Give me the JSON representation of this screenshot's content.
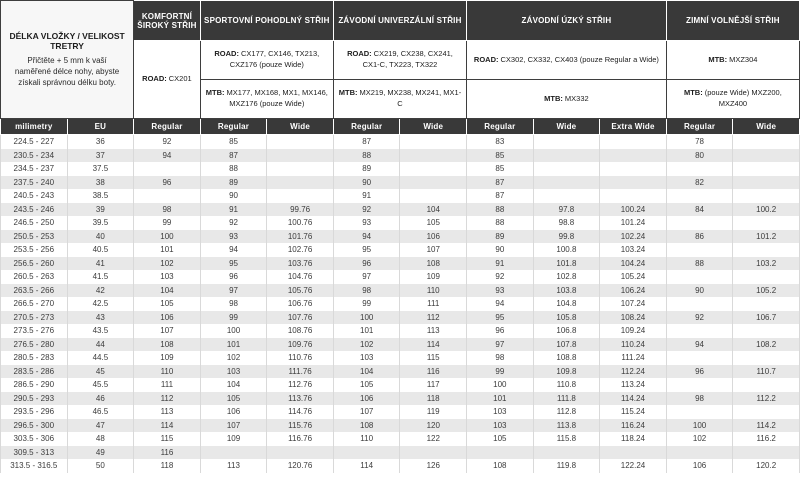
{
  "info": {
    "title": "DÉLKA VLOŽKY / VELIKOST TRETRY",
    "description": "Přičtěte + 5 mm k vaší naměřené délce nohy, abyste získali správnou délku boty."
  },
  "categories": [
    {
      "label": "KOMFORTNÍ ŠIROKÝ STŘIH",
      "cells": [
        {
          "prefix": "ROAD:",
          "models": "CX201"
        }
      ]
    },
    {
      "label": "SPORTOVNÍ POHODLNÝ STŘIH",
      "cells": [
        {
          "prefix": "ROAD:",
          "models": "CX177, CX146, TX213, CXZ176 (pouze Wide)"
        },
        {
          "prefix": "MTB:",
          "models": "MX177, MX168, MX1, MX146, MXZ176 (pouze Wide)"
        }
      ]
    },
    {
      "label": "ZÁVODNÍ UNIVERZÁLNÍ STŘIH",
      "cells": [
        {
          "prefix": "ROAD:",
          "models": "CX219, CX238, CX241, CX1-C, TX223, TX322"
        },
        {
          "prefix": "MTB:",
          "models": "MX219, MX238, MX241, MX1-C"
        }
      ]
    },
    {
      "label": "ZÁVODNÍ ÚZKÝ STŘIH",
      "cells": [
        {
          "prefix": "ROAD:",
          "models": "CX302, CX332, CX403 (pouze Regular a Wide)"
        },
        {
          "prefix": "MTB:",
          "models": "MX332"
        }
      ]
    },
    {
      "label": "ZIMNÍ VOLNĚJŠÍ STŘIH",
      "cells": [
        {
          "prefix": "MTB:",
          "models": "MXZ304"
        },
        {
          "prefix": "MTB:",
          "models": "(pouze Wide) MXZ200, MXZ400"
        }
      ]
    }
  ],
  "table": {
    "columns": [
      "milimetry",
      "EU",
      "Regular",
      "Regular",
      "Wide",
      "Regular",
      "Wide",
      "Regular",
      "Wide",
      "Extra Wide",
      "Regular",
      "Wide"
    ],
    "rows": [
      [
        "224.5 - 227",
        "36",
        "92",
        "85",
        "",
        "87",
        "",
        "83",
        "",
        "",
        "78",
        ""
      ],
      [
        "230.5 - 234",
        "37",
        "94",
        "87",
        "",
        "88",
        "",
        "85",
        "",
        "",
        "80",
        ""
      ],
      [
        "234.5 - 237",
        "37.5",
        "",
        "88",
        "",
        "89",
        "",
        "85",
        "",
        "",
        "",
        ""
      ],
      [
        "237.5 - 240",
        "38",
        "96",
        "89",
        "",
        "90",
        "",
        "87",
        "",
        "",
        "82",
        ""
      ],
      [
        "240.5 - 243",
        "38.5",
        "",
        "90",
        "",
        "91",
        "",
        "87",
        "",
        "",
        "",
        ""
      ],
      [
        "243.5 - 246",
        "39",
        "98",
        "91",
        "99.76",
        "92",
        "104",
        "88",
        "97.8",
        "100.24",
        "84",
        "100.2"
      ],
      [
        "246.5 - 250",
        "39.5",
        "99",
        "92",
        "100.76",
        "93",
        "105",
        "88",
        "98.8",
        "101.24",
        "",
        ""
      ],
      [
        "250.5 - 253",
        "40",
        "100",
        "93",
        "101.76",
        "94",
        "106",
        "89",
        "99.8",
        "102.24",
        "86",
        "101.2"
      ],
      [
        "253.5 - 256",
        "40.5",
        "101",
        "94",
        "102.76",
        "95",
        "107",
        "90",
        "100.8",
        "103.24",
        "",
        ""
      ],
      [
        "256.5 - 260",
        "41",
        "102",
        "95",
        "103.76",
        "96",
        "108",
        "91",
        "101.8",
        "104.24",
        "88",
        "103.2"
      ],
      [
        "260.5 - 263",
        "41.5",
        "103",
        "96",
        "104.76",
        "97",
        "109",
        "92",
        "102.8",
        "105.24",
        "",
        ""
      ],
      [
        "263.5 - 266",
        "42",
        "104",
        "97",
        "105.76",
        "98",
        "110",
        "93",
        "103.8",
        "106.24",
        "90",
        "105.2"
      ],
      [
        "266.5 - 270",
        "42.5",
        "105",
        "98",
        "106.76",
        "99",
        "111",
        "94",
        "104.8",
        "107.24",
        "",
        ""
      ],
      [
        "270.5 - 273",
        "43",
        "106",
        "99",
        "107.76",
        "100",
        "112",
        "95",
        "105.8",
        "108.24",
        "92",
        "106.7"
      ],
      [
        "273.5 - 276",
        "43.5",
        "107",
        "100",
        "108.76",
        "101",
        "113",
        "96",
        "106.8",
        "109.24",
        "",
        ""
      ],
      [
        "276.5 - 280",
        "44",
        "108",
        "101",
        "109.76",
        "102",
        "114",
        "97",
        "107.8",
        "110.24",
        "94",
        "108.2"
      ],
      [
        "280.5 - 283",
        "44.5",
        "109",
        "102",
        "110.76",
        "103",
        "115",
        "98",
        "108.8",
        "111.24",
        "",
        ""
      ],
      [
        "283.5 - 286",
        "45",
        "110",
        "103",
        "111.76",
        "104",
        "116",
        "99",
        "109.8",
        "112.24",
        "96",
        "110.7"
      ],
      [
        "286.5 - 290",
        "45.5",
        "111",
        "104",
        "112.76",
        "105",
        "117",
        "100",
        "110.8",
        "113.24",
        "",
        ""
      ],
      [
        "290.5 - 293",
        "46",
        "112",
        "105",
        "113.76",
        "106",
        "118",
        "101",
        "111.8",
        "114.24",
        "98",
        "112.2"
      ],
      [
        "293.5 - 296",
        "46.5",
        "113",
        "106",
        "114.76",
        "107",
        "119",
        "103",
        "112.8",
        "115.24",
        "",
        ""
      ],
      [
        "296.5 - 300",
        "47",
        "114",
        "107",
        "115.76",
        "108",
        "120",
        "103",
        "113.8",
        "116.24",
        "100",
        "114.2"
      ],
      [
        "303.5 - 306",
        "48",
        "115",
        "109",
        "116.76",
        "110",
        "122",
        "105",
        "115.8",
        "118.24",
        "102",
        "116.2"
      ],
      [
        "309.5 - 313",
        "49",
        "116",
        "",
        "",
        "",
        "",
        "",
        "",
        "",
        "",
        ""
      ],
      [
        "313.5 - 316.5",
        "50",
        "118",
        "113",
        "120.76",
        "114",
        "126",
        "108",
        "119.8",
        "122.24",
        "106",
        "120.2"
      ]
    ]
  },
  "colors": {
    "header_bg": "#393939",
    "header_text": "#ffffff",
    "row_bg": "#ffffff",
    "alt_row_bg": "#e8e8e8",
    "data_text": "#3c3c3c"
  }
}
